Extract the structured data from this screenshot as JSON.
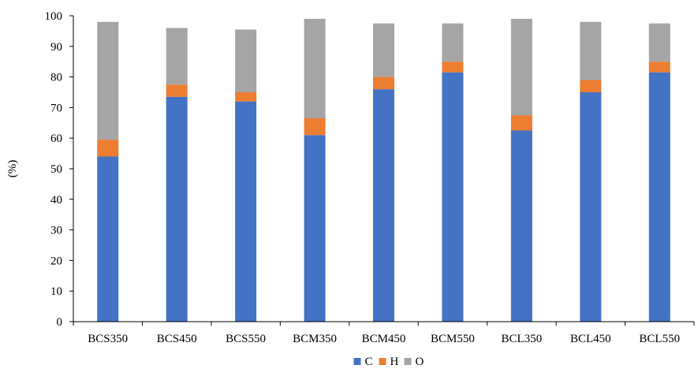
{
  "chart_data": {
    "type": "bar",
    "stacked": true,
    "categories": [
      "BCS350",
      "BCS450",
      "BCS550",
      "BCM350",
      "BCM450",
      "BCM550",
      "BCL350",
      "BCL450",
      "BCL550"
    ],
    "series": [
      {
        "name": "C",
        "color": "#4472C4",
        "values": [
          54.0,
          73.5,
          72.0,
          61.0,
          76.0,
          81.5,
          62.5,
          75.0,
          81.5
        ]
      },
      {
        "name": "H",
        "color": "#ED7D31",
        "values": [
          5.5,
          4.0,
          3.0,
          5.5,
          4.0,
          3.5,
          5.0,
          4.0,
          3.5
        ]
      },
      {
        "name": "O",
        "color": "#A5A5A5",
        "values": [
          38.5,
          18.5,
          20.5,
          32.5,
          17.5,
          12.5,
          31.5,
          19.0,
          12.5
        ]
      }
    ],
    "ylabel": "(%)",
    "xlabel": "",
    "title": "",
    "ylim": [
      0,
      100
    ],
    "yticks": [
      0,
      10,
      20,
      30,
      40,
      50,
      60,
      70,
      80,
      90,
      100
    ],
    "grid": false,
    "legend_position": "bottom"
  }
}
